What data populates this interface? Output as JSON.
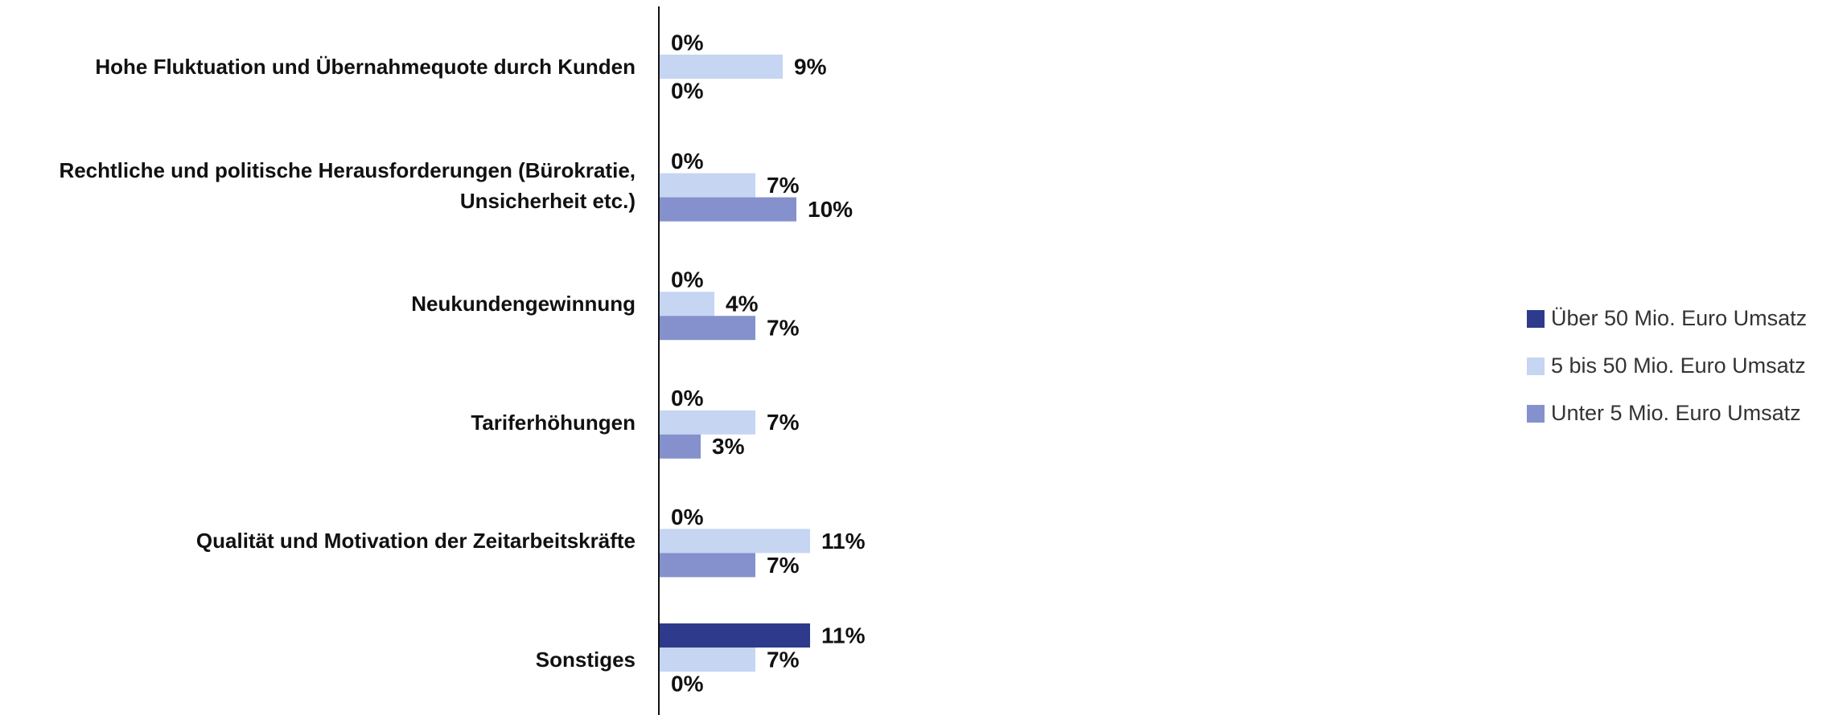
{
  "chart_data": {
    "type": "bar",
    "orientation": "horizontal",
    "categories": [
      "Hohe Fluktuation und Übernahmequote durch Kunden",
      "Rechtliche und politische Herausforderungen (Bürokratie, Unsicherheit etc.)",
      "Neukundengewinnung",
      "Tariferhöhungen",
      "Qualität und Motivation der Zeitarbeitskräfte",
      "Sonstiges"
    ],
    "series": [
      {
        "name": "Über 50 Mio. Euro Umsatz",
        "color": "#2e3a8c",
        "values": [
          0,
          0,
          0,
          0,
          0,
          11
        ],
        "value_labels": [
          "0%",
          "0%",
          "0%",
          "0%",
          "0%",
          "11%"
        ]
      },
      {
        "name": "5 bis 50 Mio. Euro Umsatz",
        "color": "#c5d5f2",
        "values": [
          9,
          7,
          4,
          7,
          11,
          7
        ],
        "value_labels": [
          "9%",
          "7%",
          "4%",
          "7%",
          "11%",
          "7%"
        ]
      },
      {
        "name": "Unter 5 Mio. Euro Umsatz",
        "color": "#8491cc",
        "values": [
          0,
          10,
          7,
          3,
          7,
          0
        ],
        "value_labels": [
          "0%",
          "10%",
          "7%",
          "3%",
          "7%",
          "0%"
        ]
      }
    ],
    "legend": "right"
  }
}
